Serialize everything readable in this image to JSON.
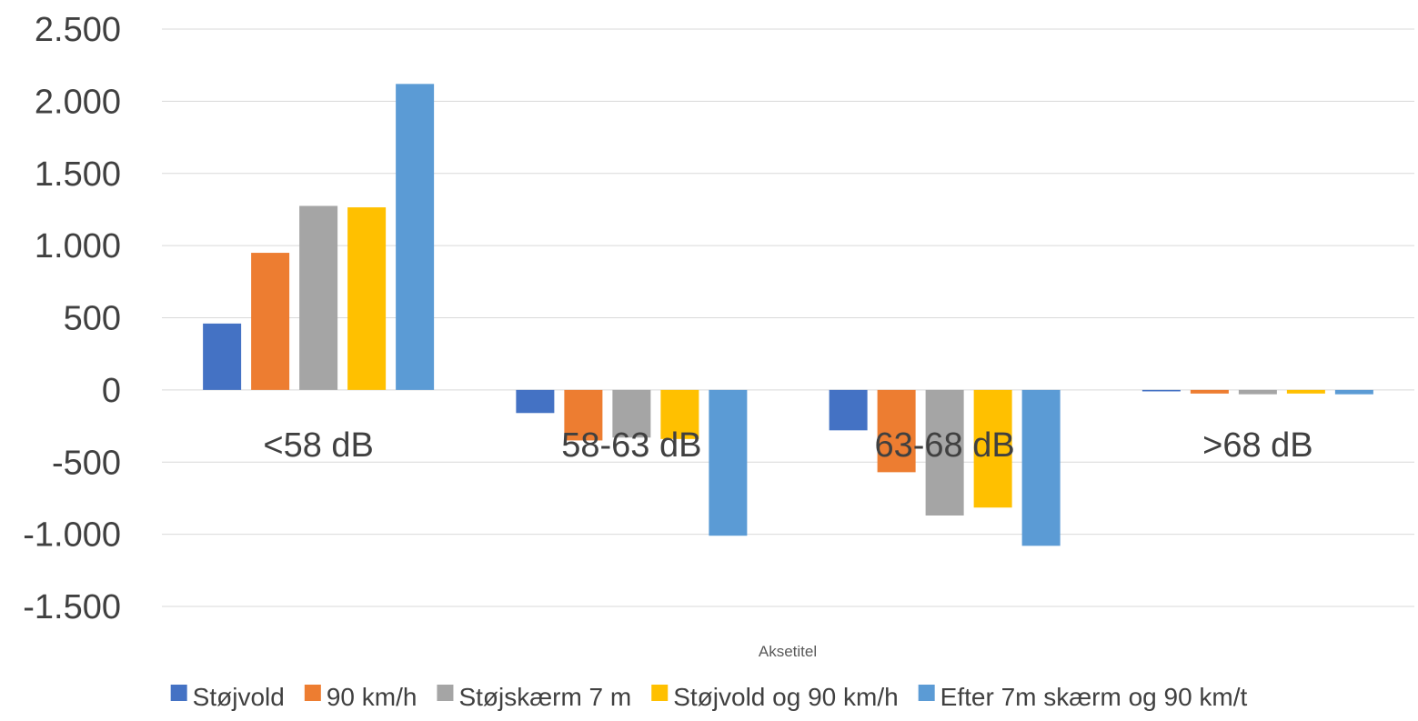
{
  "chart_data": {
    "type": "bar",
    "title": "",
    "xlabel": "Aksetitel",
    "ylabel": "",
    "ylim": [
      -1500,
      2500
    ],
    "yticks": [
      2500,
      2000,
      1500,
      1000,
      500,
      0,
      -500,
      -1000,
      -1500
    ],
    "ytick_labels": [
      "2.500",
      "2.000",
      "1.500",
      "1.000",
      "500",
      "0",
      "-500",
      "-1.000",
      "-1.500"
    ],
    "grid": true,
    "legend_position": "bottom",
    "categories": [
      "<58 dB",
      "58-63 dB",
      "63-68 dB",
      ">68 dB"
    ],
    "series": [
      {
        "name": "Støjvold",
        "color": "#4472C4",
        "values": [
          460,
          -160,
          -280,
          -10
        ]
      },
      {
        "name": "90 km/h",
        "color": "#ED7D31",
        "values": [
          950,
          -350,
          -570,
          -25
        ]
      },
      {
        "name": "Støjskærm 7 m",
        "color": "#A5A5A5",
        "values": [
          1275,
          -330,
          -870,
          -30
        ]
      },
      {
        "name": "Støjvold og 90 km/h",
        "color": "#FFC000",
        "values": [
          1265,
          -340,
          -815,
          -25
        ]
      },
      {
        "name": "Efter 7m skærm og 90 km/t",
        "color": "#5B9BD5",
        "values": [
          2120,
          -1010,
          -1080,
          -30
        ]
      }
    ]
  }
}
